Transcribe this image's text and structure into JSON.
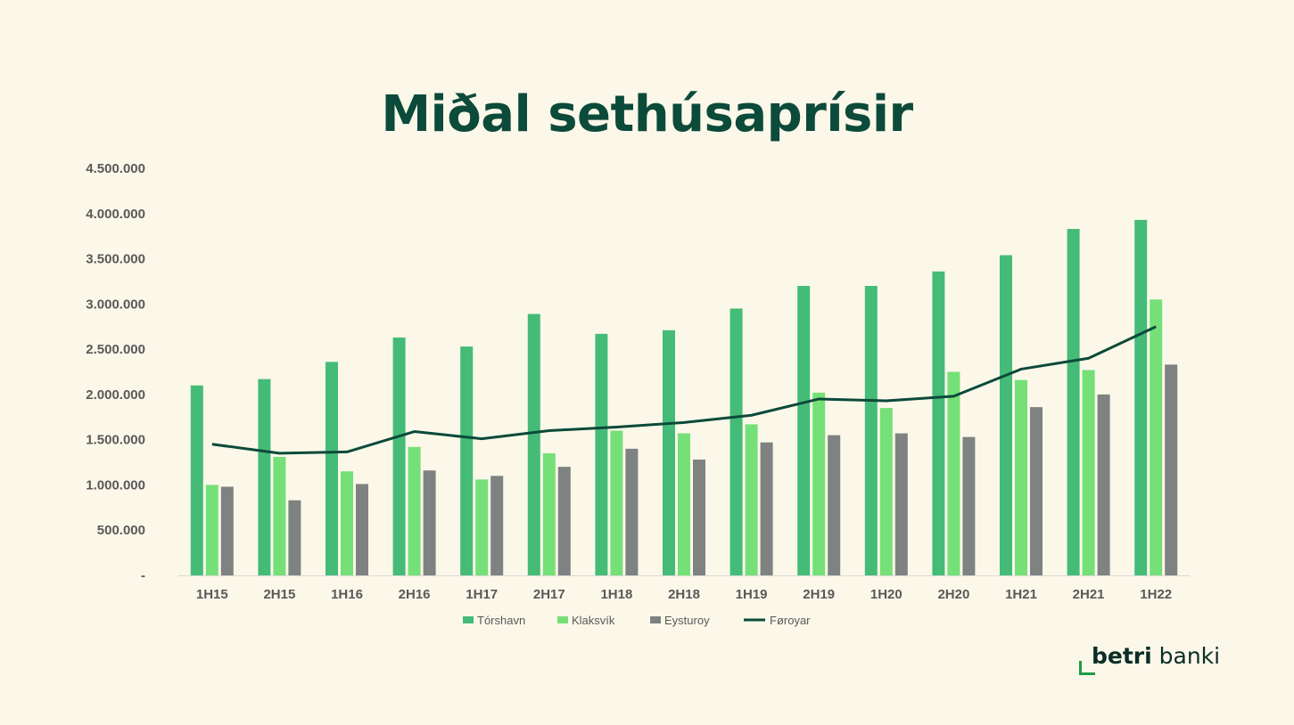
{
  "title": "Miðal sethúsaprísir",
  "logo": {
    "bold": "betri",
    "rest": " banki"
  },
  "colors": {
    "torshavn": "#45bb78",
    "klaksvik": "#75e077",
    "eysturoy": "#7e8281",
    "foroyar": "#0c4a3a"
  },
  "chart_data": {
    "type": "bar",
    "categories": [
      "1H15",
      "2H15",
      "1H16",
      "2H16",
      "1H17",
      "2H17",
      "1H18",
      "2H18",
      "1H19",
      "2H19",
      "1H20",
      "2H20",
      "1H21",
      "2H21",
      "1H22"
    ],
    "series": [
      {
        "name": "Tórshavn",
        "type": "bar",
        "values": [
          2100000,
          2170000,
          2360000,
          2630000,
          2530000,
          2890000,
          2670000,
          2710000,
          2950000,
          3200000,
          3200000,
          3360000,
          3540000,
          3830000,
          3930000
        ]
      },
      {
        "name": "Klaksvík",
        "type": "bar",
        "values": [
          1000000,
          1310000,
          1150000,
          1420000,
          1060000,
          1350000,
          1600000,
          1570000,
          1670000,
          2020000,
          1850000,
          2250000,
          2160000,
          2270000,
          3050000
        ]
      },
      {
        "name": "Eysturoy",
        "type": "bar",
        "values": [
          980000,
          830000,
          1010000,
          1160000,
          1100000,
          1200000,
          1400000,
          1280000,
          1470000,
          1550000,
          1570000,
          1530000,
          1860000,
          2000000,
          2330000
        ]
      },
      {
        "name": "Føroyar",
        "type": "line",
        "values": [
          1450000,
          1350000,
          1365000,
          1590000,
          1510000,
          1600000,
          1640000,
          1690000,
          1770000,
          1950000,
          1930000,
          1980000,
          2280000,
          2400000,
          2750000
        ]
      }
    ],
    "yticks": [
      "-",
      "500.000",
      "1.000.000",
      "1.500.000",
      "2.000.000",
      "2.500.000",
      "3.000.000",
      "3.500.000",
      "4.000.000",
      "4.500.000"
    ],
    "ylim": [
      0,
      4500000
    ],
    "grid": false,
    "legend_position": "bottom"
  }
}
